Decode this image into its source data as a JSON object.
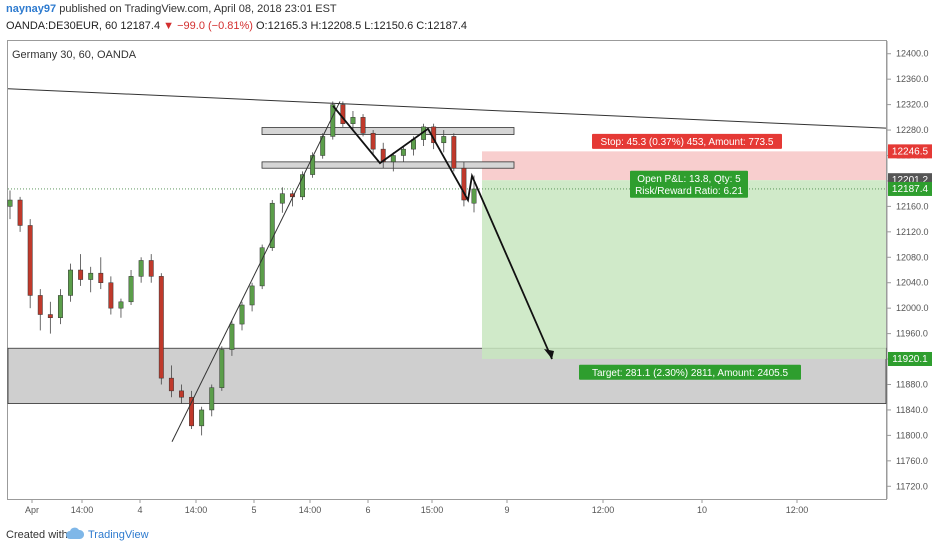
{
  "header": {
    "author": "naynay97",
    "published_text": "published on TradingView.com, April 08, 2018 23:01 EST",
    "symbol": "OANDA:DE30EUR, 60",
    "last_price": "12187.4",
    "change": "▼ −99.0 (−0.81%)",
    "open": "O:12165.3",
    "high": "H:12208.5",
    "low": "L:12150.6",
    "close": "C:12187.4"
  },
  "chart_data": {
    "type": "candlestick",
    "title": "Germany 30, 60, OANDA",
    "y_ticks": [
      "12400.0",
      "12360.0",
      "12320.0",
      "12280.0",
      "12240.0",
      "12200.0",
      "12160.0",
      "12120.0",
      "12080.0",
      "12040.0",
      "12000.0",
      "11960.0",
      "11920.0",
      "11880.0",
      "11840.0",
      "11800.0",
      "11760.0",
      "11720.0"
    ],
    "ylim": [
      11700,
      12420
    ],
    "x_ticks": [
      "Apr",
      "14:00",
      "4",
      "14:00",
      "5",
      "14:00",
      "6",
      "15:00",
      "9",
      "12:00",
      "10",
      "12:00"
    ],
    "candles": [
      [
        12160,
        12185,
        12140,
        12170
      ],
      [
        12170,
        12175,
        12120,
        12130
      ],
      [
        12130,
        12140,
        12000,
        12020
      ],
      [
        12020,
        12030,
        11965,
        11990
      ],
      [
        11990,
        12010,
        11960,
        11985
      ],
      [
        11985,
        12030,
        11975,
        12020
      ],
      [
        12020,
        12070,
        12010,
        12060
      ],
      [
        12060,
        12085,
        12035,
        12045
      ],
      [
        12045,
        12065,
        12025,
        12055
      ],
      [
        12055,
        12080,
        12030,
        12040
      ],
      [
        12040,
        12050,
        11990,
        12000
      ],
      [
        12000,
        12015,
        11985,
        12010
      ],
      [
        12010,
        12060,
        12005,
        12050
      ],
      [
        12050,
        12080,
        12040,
        12075
      ],
      [
        12075,
        12085,
        12040,
        12050
      ],
      [
        12050,
        12055,
        11880,
        11890
      ],
      [
        11890,
        11910,
        11860,
        11870
      ],
      [
        11870,
        11880,
        11850,
        11860
      ],
      [
        11860,
        11870,
        11810,
        11815
      ],
      [
        11815,
        11845,
        11800,
        11840
      ],
      [
        11840,
        11880,
        11830,
        11875
      ],
      [
        11875,
        11940,
        11870,
        11935
      ],
      [
        11935,
        11980,
        11925,
        11975
      ],
      [
        11975,
        12010,
        11965,
        12005
      ],
      [
        12005,
        12040,
        11995,
        12035
      ],
      [
        12035,
        12100,
        12030,
        12095
      ],
      [
        12095,
        12170,
        12090,
        12165
      ],
      [
        12165,
        12190,
        12150,
        12180
      ],
      [
        12180,
        12185,
        12160,
        12175
      ],
      [
        12175,
        12215,
        12170,
        12210
      ],
      [
        12210,
        12245,
        12205,
        12240
      ],
      [
        12240,
        12275,
        12235,
        12270
      ],
      [
        12270,
        12325,
        12265,
        12320
      ],
      [
        12320,
        12325,
        12285,
        12290
      ],
      [
        12290,
        12310,
        12280,
        12300
      ],
      [
        12300,
        12305,
        12270,
        12275
      ],
      [
        12275,
        12280,
        12240,
        12250
      ],
      [
        12250,
        12260,
        12220,
        12230
      ],
      [
        12230,
        12245,
        12215,
        12240
      ],
      [
        12240,
        12255,
        12230,
        12250
      ],
      [
        12250,
        12270,
        12240,
        12265
      ],
      [
        12265,
        12290,
        12255,
        12285
      ],
      [
        12285,
        12290,
        12250,
        12260
      ],
      [
        12260,
        12280,
        12245,
        12270
      ],
      [
        12270,
        12275,
        12215,
        12220
      ],
      [
        12220,
        12230,
        12160,
        12170
      ],
      [
        12165,
        12208.5,
        12150.6,
        12187.4
      ]
    ],
    "position": {
      "entry": 12201.2,
      "stop": 12246.5,
      "target": 11920.1,
      "stop_label": "Stop: 45.3 (0.37%) 453, Amount: 773.5",
      "target_label": "Target: 281.1 (2.30%) 2811, Amount: 2405.5",
      "pnl_label": "Open P&L: 13.8, Qty: 5",
      "rr_label": "Risk/Reward Ratio: 6.21"
    },
    "price_tags": [
      "12246.5",
      "12201.2",
      "12187.4",
      "11920.1"
    ],
    "support_zone": [
      11850,
      11937
    ],
    "colors": {
      "up": "#5b9e4a",
      "down": "#c0392b",
      "stop_fill": "#f7c6c6",
      "target_fill": "#c8e6c0",
      "stop_badge": "#e53935",
      "target_badge": "#2e9e2e",
      "zone_fill": "#cfcfcf"
    }
  },
  "footer": {
    "created_with": "Created with",
    "brand": "TradingView"
  }
}
